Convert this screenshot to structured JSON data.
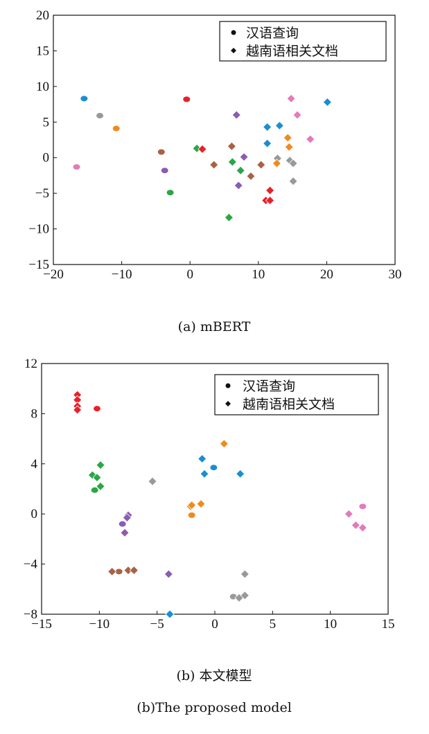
{
  "legend": {
    "query": "汉语查询",
    "doc": "越南语相关文档"
  },
  "colors": {
    "red": "#e8212a",
    "blue": "#1a8fd0",
    "orange": "#f18a1b",
    "green": "#2aa744",
    "brown": "#a86244",
    "purple": "#8a5cb4",
    "gray": "#999999",
    "pink": "#e37bbb"
  },
  "chart_data": [
    {
      "type": "scatter",
      "caption": "(a) mBERT",
      "xlim": [
        -20,
        30
      ],
      "ylim": [
        -15,
        20
      ],
      "xticks": [
        -20,
        -10,
        0,
        10,
        20,
        30
      ],
      "yticks": [
        -15,
        -10,
        -5,
        0,
        5,
        10,
        15,
        20
      ],
      "legend_position": "top-right",
      "series": [
        {
          "marker": "circle",
          "points": [
            {
              "x": -15.5,
              "y": 8.3,
              "c": "blue"
            },
            {
              "x": -13.2,
              "y": 5.9,
              "c": "gray"
            },
            {
              "x": -10.8,
              "y": 4.1,
              "c": "orange"
            },
            {
              "x": -0.5,
              "y": 8.2,
              "c": "red"
            },
            {
              "x": -4.2,
              "y": 0.8,
              "c": "brown"
            },
            {
              "x": -3.7,
              "y": -1.8,
              "c": "purple"
            },
            {
              "x": -16.6,
              "y": -1.3,
              "c": "pink"
            },
            {
              "x": -2.9,
              "y": -4.9,
              "c": "green"
            }
          ]
        },
        {
          "marker": "diamond",
          "points": [
            {
              "x": 1.0,
              "y": 1.3,
              "c": "green"
            },
            {
              "x": 1.8,
              "y": 1.2,
              "c": "red"
            },
            {
              "x": 6.8,
              "y": 6.0,
              "c": "purple"
            },
            {
              "x": 6.1,
              "y": 1.6,
              "c": "brown"
            },
            {
              "x": 3.5,
              "y": -1.0,
              "c": "brown"
            },
            {
              "x": 6.2,
              "y": -0.6,
              "c": "green"
            },
            {
              "x": 7.9,
              "y": 0.1,
              "c": "purple"
            },
            {
              "x": 7.4,
              "y": -1.8,
              "c": "green"
            },
            {
              "x": 7.1,
              "y": -3.9,
              "c": "purple"
            },
            {
              "x": 8.9,
              "y": -2.6,
              "c": "brown"
            },
            {
              "x": 10.4,
              "y": -1.0,
              "c": "brown"
            },
            {
              "x": 5.7,
              "y": -8.4,
              "c": "green"
            },
            {
              "x": 11.3,
              "y": 4.3,
              "c": "blue"
            },
            {
              "x": 13.1,
              "y": 4.5,
              "c": "blue"
            },
            {
              "x": 11.3,
              "y": 2.0,
              "c": "blue"
            },
            {
              "x": 14.8,
              "y": 8.3,
              "c": "pink"
            },
            {
              "x": 15.7,
              "y": 6.0,
              "c": "pink"
            },
            {
              "x": 17.6,
              "y": 2.6,
              "c": "pink"
            },
            {
              "x": 20.1,
              "y": 7.8,
              "c": "blue"
            },
            {
              "x": 14.3,
              "y": 2.8,
              "c": "orange"
            },
            {
              "x": 14.5,
              "y": 1.5,
              "c": "orange"
            },
            {
              "x": 12.8,
              "y": -0.1,
              "c": "gray"
            },
            {
              "x": 12.7,
              "y": -0.8,
              "c": "orange"
            },
            {
              "x": 14.6,
              "y": -0.4,
              "c": "gray"
            },
            {
              "x": 15.1,
              "y": -0.8,
              "c": "gray"
            },
            {
              "x": 15.1,
              "y": -3.3,
              "c": "gray"
            },
            {
              "x": 11.7,
              "y": -4.6,
              "c": "red"
            },
            {
              "x": 11.1,
              "y": -6.0,
              "c": "red"
            },
            {
              "x": 11.7,
              "y": -6.0,
              "c": "red"
            }
          ]
        }
      ]
    },
    {
      "type": "scatter",
      "caption": "(b) 本文模型",
      "caption2": "(b)The proposed model",
      "xlim": [
        -15,
        15
      ],
      "ylim": [
        -8,
        12
      ],
      "xticks": [
        -15,
        -10,
        -5,
        0,
        5,
        10,
        15
      ],
      "yticks": [
        -8,
        -4,
        0,
        4,
        8,
        12
      ],
      "legend_position": "top-right",
      "series": [
        {
          "marker": "circle",
          "points": [
            {
              "x": -10.2,
              "y": 8.4,
              "c": "red"
            },
            {
              "x": -0.1,
              "y": 3.7,
              "c": "blue"
            },
            {
              "x": -2.0,
              "y": -0.1,
              "c": "orange"
            },
            {
              "x": -8.0,
              "y": -0.8,
              "c": "purple"
            },
            {
              "x": -10.4,
              "y": 1.9,
              "c": "green"
            },
            {
              "x": -8.3,
              "y": -4.6,
              "c": "brown"
            },
            {
              "x": 1.6,
              "y": -6.6,
              "c": "gray"
            },
            {
              "x": 12.8,
              "y": 0.6,
              "c": "pink"
            }
          ]
        },
        {
          "marker": "diamond",
          "points": [
            {
              "x": -11.9,
              "y": 9.5,
              "c": "red"
            },
            {
              "x": -11.9,
              "y": 9.1,
              "c": "red"
            },
            {
              "x": -11.9,
              "y": 8.6,
              "c": "red"
            },
            {
              "x": -11.9,
              "y": 8.3,
              "c": "red"
            },
            {
              "x": -9.9,
              "y": 3.9,
              "c": "green"
            },
            {
              "x": -10.6,
              "y": 3.1,
              "c": "green"
            },
            {
              "x": -10.2,
              "y": 2.9,
              "c": "green"
            },
            {
              "x": -9.9,
              "y": 2.2,
              "c": "green"
            },
            {
              "x": -7.5,
              "y": -0.1,
              "c": "purple"
            },
            {
              "x": -7.6,
              "y": -0.3,
              "c": "purple"
            },
            {
              "x": -7.8,
              "y": -1.5,
              "c": "purple"
            },
            {
              "x": -5.4,
              "y": 2.6,
              "c": "gray"
            },
            {
              "x": -8.9,
              "y": -4.6,
              "c": "brown"
            },
            {
              "x": -7.5,
              "y": -4.5,
              "c": "brown"
            },
            {
              "x": -7.0,
              "y": -4.5,
              "c": "brown"
            },
            {
              "x": -4.0,
              "y": -4.8,
              "c": "purple"
            },
            {
              "x": -3.9,
              "y": -8.0,
              "c": "blue"
            },
            {
              "x": -1.1,
              "y": 4.4,
              "c": "blue"
            },
            {
              "x": -0.9,
              "y": 3.2,
              "c": "blue"
            },
            {
              "x": 0.8,
              "y": 5.6,
              "c": "orange"
            },
            {
              "x": 2.2,
              "y": 3.2,
              "c": "blue"
            },
            {
              "x": -2.1,
              "y": 0.6,
              "c": "orange"
            },
            {
              "x": -2.0,
              "y": 0.7,
              "c": "orange"
            },
            {
              "x": -1.2,
              "y": 0.8,
              "c": "orange"
            },
            {
              "x": 2.6,
              "y": -4.8,
              "c": "gray"
            },
            {
              "x": 2.1,
              "y": -6.7,
              "c": "gray"
            },
            {
              "x": 2.6,
              "y": -6.5,
              "c": "gray"
            },
            {
              "x": 11.6,
              "y": 0.0,
              "c": "pink"
            },
            {
              "x": 12.2,
              "y": -0.9,
              "c": "pink"
            },
            {
              "x": 12.8,
              "y": -1.1,
              "c": "pink"
            }
          ]
        }
      ]
    }
  ]
}
